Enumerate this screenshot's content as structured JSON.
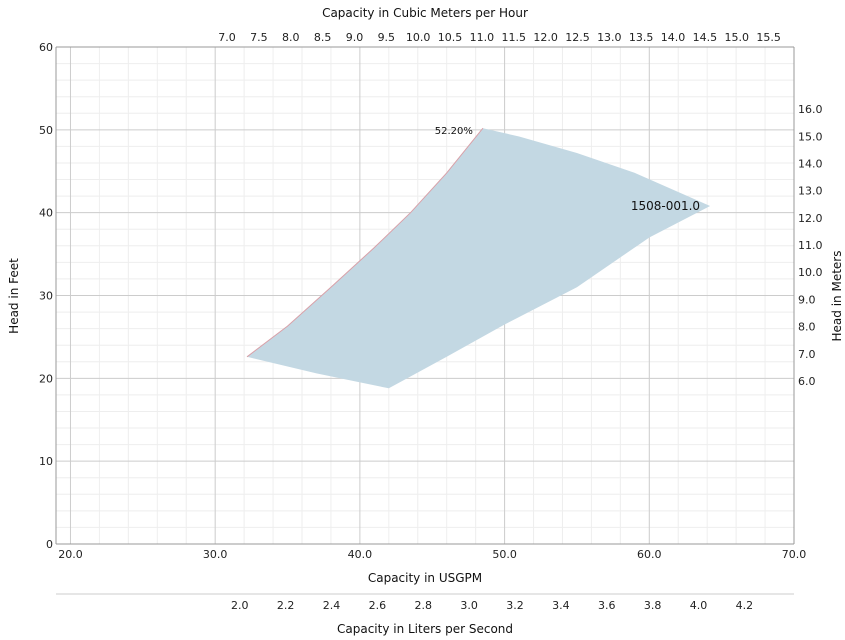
{
  "chart_data": {
    "type": "area",
    "grid": true,
    "legend": "none",
    "colors": {
      "area_fill": "#c3d8e3",
      "upper_edge": "#d9a0a8",
      "grid_major": "#cccccc",
      "grid_minor": "#eeeeee",
      "axis": "#999999"
    },
    "x_bottom": {
      "label": "Capacity in USGPM",
      "range": [
        19.0,
        70.0
      ],
      "ticks": [
        "20.0",
        "30.0",
        "40.0",
        "50.0",
        "60.0",
        "70.0"
      ],
      "tick_values": [
        20,
        30,
        40,
        50,
        60,
        70
      ]
    },
    "x_top": {
      "label": "Capacity in Cubic Meters per Hour",
      "ticks": [
        "7.0",
        "7.5",
        "8.0",
        "8.5",
        "9.0",
        "9.5",
        "10.0",
        "10.5",
        "11.0",
        "11.5",
        "12.0",
        "12.5",
        "13.0",
        "13.5",
        "14.0",
        "14.5",
        "15.0",
        "15.5"
      ],
      "tick_values": [
        7.0,
        7.5,
        8.0,
        8.5,
        9.0,
        9.5,
        10.0,
        10.5,
        11.0,
        11.5,
        12.0,
        12.5,
        13.0,
        13.5,
        14.0,
        14.5,
        15.0,
        15.5
      ]
    },
    "x_secondary_bottom": {
      "label": "Capacity in Liters per Second",
      "ticks": [
        "2.0",
        "2.2",
        "2.4",
        "2.6",
        "2.8",
        "3.0",
        "3.2",
        "3.4",
        "3.6",
        "3.8",
        "4.0",
        "4.2"
      ],
      "tick_values": [
        2.0,
        2.2,
        2.4,
        2.6,
        2.8,
        3.0,
        3.2,
        3.4,
        3.6,
        3.8,
        4.0,
        4.2
      ]
    },
    "y_left": {
      "label": "Head in Feet",
      "range": [
        0,
        60
      ],
      "ticks": [
        "0",
        "10",
        "20",
        "30",
        "40",
        "50",
        "60"
      ],
      "tick_values": [
        0,
        10,
        20,
        30,
        40,
        50,
        60
      ]
    },
    "y_right": {
      "label": "Head in Meters",
      "ticks": [
        "6.0",
        "7.0",
        "8.0",
        "9.0",
        "10.0",
        "11.0",
        "12.0",
        "13.0",
        "14.0",
        "15.0",
        "16.0"
      ],
      "tick_values": [
        6.0,
        7.0,
        8.0,
        9.0,
        10.0,
        11.0,
        12.0,
        13.0,
        14.0,
        15.0,
        16.0
      ]
    },
    "region": {
      "name": "1508-001.0",
      "upper_edge": [
        [
          32.2,
          22.6
        ],
        [
          35.0,
          26.3
        ],
        [
          38.0,
          31.0
        ],
        [
          41.0,
          35.8
        ],
        [
          43.5,
          40.0
        ],
        [
          46.0,
          44.8
        ],
        [
          48.5,
          50.2
        ]
      ],
      "outline": [
        [
          32.2,
          22.6
        ],
        [
          35.0,
          26.3
        ],
        [
          38.0,
          31.0
        ],
        [
          41.0,
          35.8
        ],
        [
          43.5,
          40.0
        ],
        [
          46.0,
          44.8
        ],
        [
          48.5,
          50.2
        ],
        [
          51.0,
          49.2
        ],
        [
          55.0,
          47.2
        ],
        [
          59.0,
          44.8
        ],
        [
          64.2,
          40.8
        ],
        [
          60.0,
          37.0
        ],
        [
          55.0,
          31.0
        ],
        [
          50.0,
          26.5
        ],
        [
          46.0,
          22.6
        ],
        [
          42.0,
          18.8
        ],
        [
          37.0,
          20.6
        ],
        [
          32.2,
          22.6
        ]
      ]
    },
    "annotations": [
      {
        "text": "52.20%",
        "x": 48.5,
        "y": 50.2
      },
      {
        "text": "1508-001.0",
        "x": 64.2,
        "y": 40.8
      }
    ]
  }
}
